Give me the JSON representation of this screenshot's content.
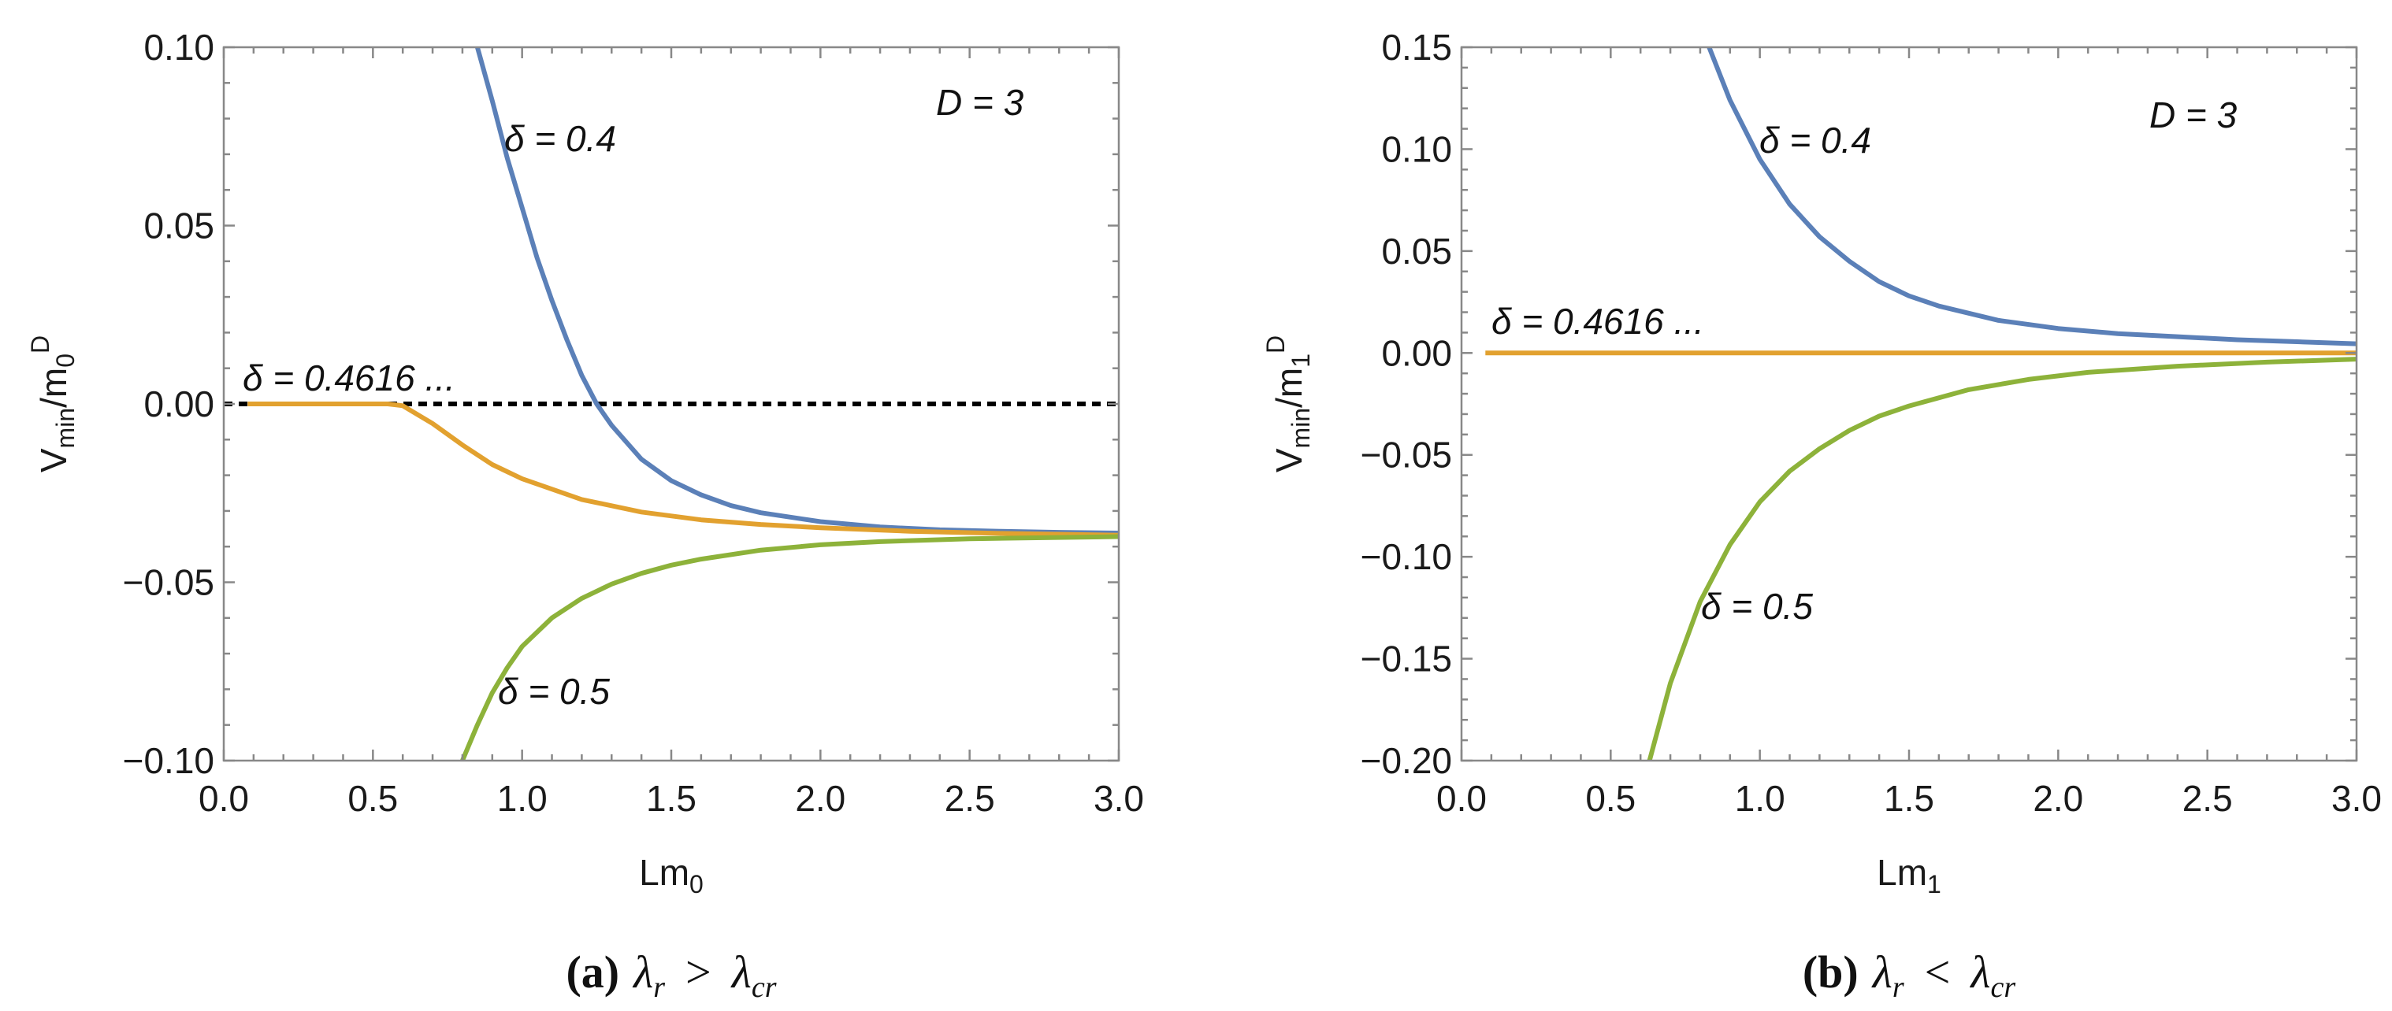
{
  "colors": {
    "blue": "#5B80B8",
    "orange": "#E2A12F",
    "green": "#8DB23A",
    "reference": "#000000"
  },
  "chart_data": [
    {
      "type": "line",
      "panel": "a",
      "xlabel": "Lm",
      "xlabel_sub": "0",
      "ylabel_main": "V",
      "ylabel_sub": "min",
      "ylabel_div": "/m",
      "ylabel_sub2": "0",
      "ylabel_sup": "D",
      "xlim": [
        0,
        3
      ],
      "ylim": [
        -0.1,
        0.1
      ],
      "xticks": [
        "0.0",
        "0.5",
        "1.0",
        "1.5",
        "2.0",
        "2.5",
        "3.0"
      ],
      "yticks": [
        "−0.10",
        "−0.05",
        "0.00",
        "0.05",
        "0.10"
      ],
      "corner_label": "D = 3",
      "caption_tag": "(a)",
      "caption_math": "λᵣ > λ_cr",
      "caption_lhs": "λ",
      "caption_lhs_sub": "r",
      "caption_op": ">",
      "caption_rhs": "λ",
      "caption_rhs_sub": "cr",
      "reference_line": {
        "y": 0,
        "style": "dashed"
      },
      "series": [
        {
          "name": "δ = 0.4",
          "color_key": "blue",
          "label": "δ = 0.4",
          "x": [
            0.85,
            0.9,
            0.95,
            1.0,
            1.05,
            1.1,
            1.15,
            1.2,
            1.25,
            1.3,
            1.4,
            1.5,
            1.6,
            1.7,
            1.8,
            2.0,
            2.2,
            2.4,
            2.6,
            2.8,
            3.0
          ],
          "y": [
            0.1,
            0.085,
            0.069,
            0.055,
            0.041,
            0.029,
            0.018,
            0.008,
            0.0,
            -0.006,
            -0.0155,
            -0.0215,
            -0.0255,
            -0.0285,
            -0.0305,
            -0.033,
            -0.0345,
            -0.0353,
            -0.0357,
            -0.036,
            -0.0362
          ]
        },
        {
          "name": "δ = 0.4616...",
          "color_key": "orange",
          "label": "δ = 0.4616 ...",
          "x": [
            0.08,
            0.3,
            0.55,
            0.6,
            0.7,
            0.8,
            0.9,
            1.0,
            1.2,
            1.4,
            1.6,
            1.8,
            2.0,
            2.3,
            2.6,
            3.0
          ],
          "y": [
            0.0,
            0.0,
            0.0,
            -0.0005,
            -0.0055,
            -0.0115,
            -0.017,
            -0.021,
            -0.0268,
            -0.0303,
            -0.0325,
            -0.0338,
            -0.0347,
            -0.0357,
            -0.0363,
            -0.0368
          ]
        },
        {
          "name": "δ = 0.5",
          "color_key": "green",
          "label": "δ = 0.5",
          "x": [
            0.8,
            0.85,
            0.9,
            0.95,
            1.0,
            1.1,
            1.2,
            1.3,
            1.4,
            1.5,
            1.6,
            1.8,
            2.0,
            2.2,
            2.5,
            3.0
          ],
          "y": [
            -0.1,
            -0.09,
            -0.081,
            -0.074,
            -0.068,
            -0.06,
            -0.0545,
            -0.0505,
            -0.0475,
            -0.0452,
            -0.0435,
            -0.041,
            -0.0395,
            -0.0386,
            -0.0378,
            -0.0372
          ]
        }
      ]
    },
    {
      "type": "line",
      "panel": "b",
      "xlabel": "Lm",
      "xlabel_sub": "1",
      "ylabel_main": "V",
      "ylabel_sub": "min",
      "ylabel_div": "/m",
      "ylabel_sub2": "1",
      "ylabel_sup": "D",
      "xlim": [
        0,
        3
      ],
      "ylim": [
        -0.2,
        0.15
      ],
      "xticks": [
        "0.0",
        "0.5",
        "1.0",
        "1.5",
        "2.0",
        "2.5",
        "3.0"
      ],
      "yticks": [
        "−0.20",
        "−0.15",
        "−0.10",
        "−0.05",
        "0.00",
        "0.05",
        "0.10",
        "0.15"
      ],
      "corner_label": "D = 3",
      "caption_tag": "(b)",
      "caption_math": "λᵣ < λ_cr",
      "caption_lhs": "λ",
      "caption_lhs_sub": "r",
      "caption_op": "<",
      "caption_rhs": "λ",
      "caption_rhs_sub": "cr",
      "series": [
        {
          "name": "δ = 0.4",
          "color_key": "blue",
          "label": "δ = 0.4",
          "x": [
            0.83,
            0.9,
            1.0,
            1.1,
            1.2,
            1.3,
            1.4,
            1.5,
            1.6,
            1.8,
            2.0,
            2.2,
            2.4,
            2.6,
            2.8,
            3.0
          ],
          "y": [
            0.15,
            0.124,
            0.095,
            0.073,
            0.057,
            0.045,
            0.035,
            0.028,
            0.023,
            0.016,
            0.012,
            0.0095,
            0.008,
            0.0065,
            0.0055,
            0.0045
          ]
        },
        {
          "name": "δ = 0.4616...",
          "color_key": "orange",
          "label": "δ = 0.4616 ...",
          "x": [
            0.08,
            3.0
          ],
          "y": [
            0.0,
            0.0
          ]
        },
        {
          "name": "δ = 0.5",
          "color_key": "green",
          "label": "δ = 0.5",
          "x": [
            0.63,
            0.7,
            0.8,
            0.9,
            1.0,
            1.1,
            1.2,
            1.3,
            1.4,
            1.5,
            1.7,
            1.9,
            2.1,
            2.4,
            2.7,
            3.0
          ],
          "y": [
            -0.2,
            -0.162,
            -0.122,
            -0.094,
            -0.073,
            -0.058,
            -0.047,
            -0.038,
            -0.031,
            -0.026,
            -0.018,
            -0.013,
            -0.0095,
            -0.0065,
            -0.0045,
            -0.003
          ]
        }
      ]
    }
  ]
}
